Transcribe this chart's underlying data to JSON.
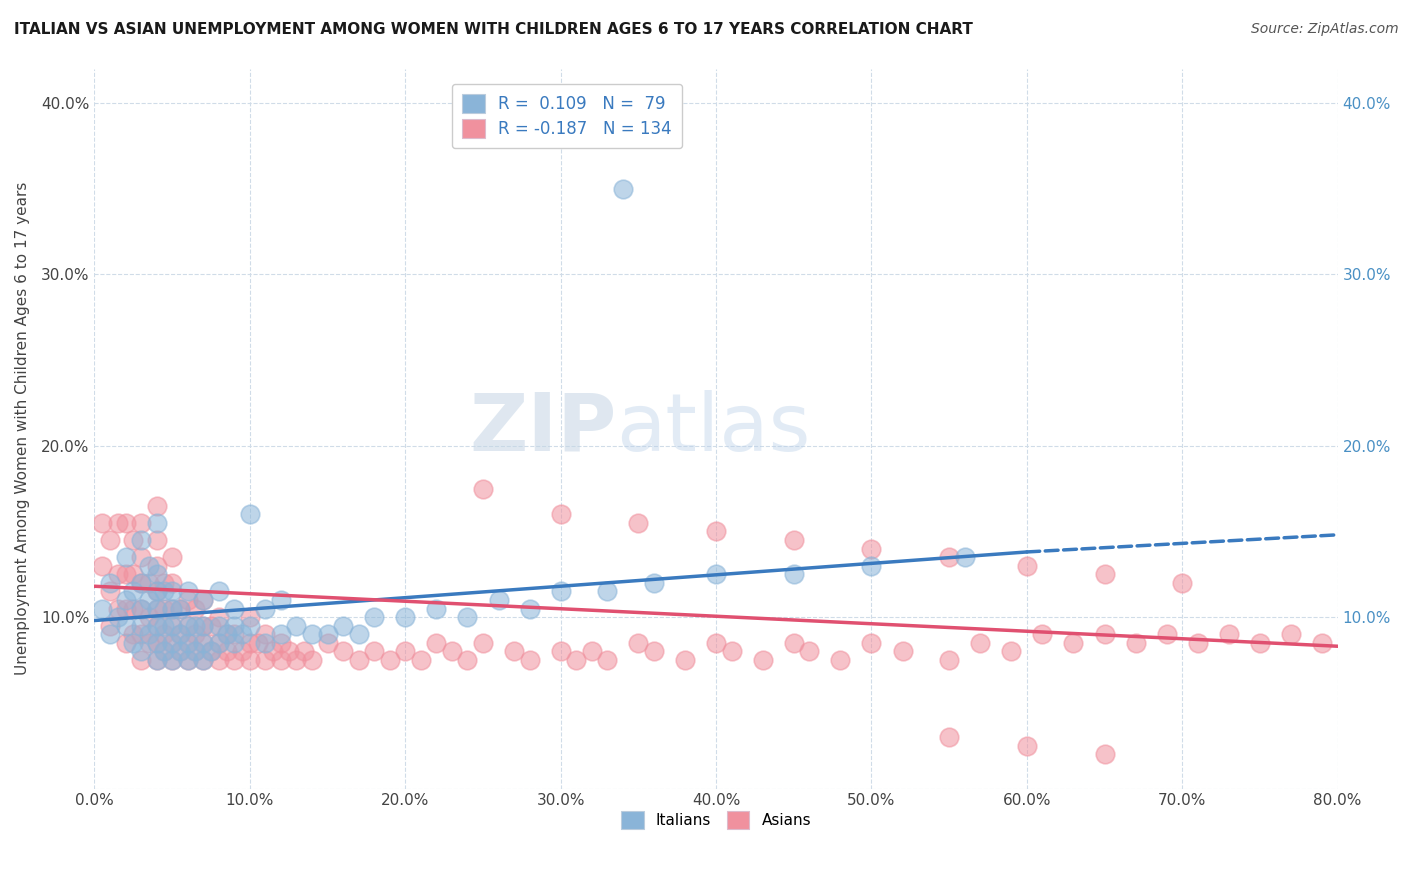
{
  "title": "ITALIAN VS ASIAN UNEMPLOYMENT AMONG WOMEN WITH CHILDREN AGES 6 TO 17 YEARS CORRELATION CHART",
  "source": "Source: ZipAtlas.com",
  "ylabel": "Unemployment Among Women with Children Ages 6 to 17 years",
  "xlim": [
    0.0,
    0.8
  ],
  "ylim": [
    0.0,
    0.42
  ],
  "xticks": [
    0.0,
    0.1,
    0.2,
    0.3,
    0.4,
    0.5,
    0.6,
    0.7,
    0.8
  ],
  "xticklabels": [
    "0.0%",
    "10.0%",
    "20.0%",
    "30.0%",
    "40.0%",
    "50.0%",
    "60.0%",
    "70.0%",
    "80.0%"
  ],
  "yticks_left": [
    0.0,
    0.1,
    0.2,
    0.3,
    0.4
  ],
  "yticklabels_left": [
    "",
    "10.0%",
    "20.0%",
    "30.0%",
    "40.0%"
  ],
  "yticks_right": [
    0.1,
    0.2,
    0.3,
    0.4
  ],
  "yticklabels_right": [
    "10.0%",
    "20.0%",
    "30.0%",
    "40.0%"
  ],
  "italian_color": "#8ab4d8",
  "asian_color": "#f0919e",
  "italian_line_color": "#3a7abf",
  "asian_line_color": "#e05070",
  "R_italian": 0.109,
  "N_italian": 79,
  "R_asian": -0.187,
  "N_asian": 134,
  "watermark_zip": "ZIP",
  "watermark_atlas": "atlas",
  "background_color": "#ffffff",
  "grid_color": "#d0dce8",
  "italian_scatter_x": [
    0.005,
    0.01,
    0.01,
    0.015,
    0.02,
    0.02,
    0.02,
    0.025,
    0.025,
    0.03,
    0.03,
    0.03,
    0.03,
    0.03,
    0.035,
    0.035,
    0.035,
    0.04,
    0.04,
    0.04,
    0.04,
    0.04,
    0.04,
    0.04,
    0.045,
    0.045,
    0.045,
    0.05,
    0.05,
    0.05,
    0.05,
    0.05,
    0.055,
    0.055,
    0.055,
    0.06,
    0.06,
    0.06,
    0.06,
    0.065,
    0.065,
    0.07,
    0.07,
    0.07,
    0.07,
    0.075,
    0.08,
    0.08,
    0.08,
    0.085,
    0.09,
    0.09,
    0.09,
    0.095,
    0.1,
    0.1,
    0.11,
    0.11,
    0.12,
    0.12,
    0.13,
    0.14,
    0.15,
    0.16,
    0.17,
    0.18,
    0.2,
    0.22,
    0.24,
    0.26,
    0.28,
    0.3,
    0.33,
    0.36,
    0.4,
    0.45,
    0.5,
    0.56,
    0.34
  ],
  "italian_scatter_y": [
    0.105,
    0.09,
    0.12,
    0.1,
    0.095,
    0.11,
    0.135,
    0.085,
    0.115,
    0.08,
    0.095,
    0.105,
    0.12,
    0.145,
    0.09,
    0.11,
    0.13,
    0.075,
    0.085,
    0.095,
    0.105,
    0.115,
    0.125,
    0.155,
    0.08,
    0.095,
    0.115,
    0.075,
    0.085,
    0.095,
    0.105,
    0.115,
    0.08,
    0.09,
    0.105,
    0.075,
    0.085,
    0.095,
    0.115,
    0.08,
    0.095,
    0.075,
    0.085,
    0.095,
    0.11,
    0.08,
    0.085,
    0.095,
    0.115,
    0.09,
    0.085,
    0.095,
    0.105,
    0.09,
    0.095,
    0.16,
    0.085,
    0.105,
    0.09,
    0.11,
    0.095,
    0.09,
    0.09,
    0.095,
    0.09,
    0.1,
    0.1,
    0.105,
    0.1,
    0.11,
    0.105,
    0.115,
    0.115,
    0.12,
    0.125,
    0.125,
    0.13,
    0.135,
    0.35
  ],
  "asian_scatter_x": [
    0.005,
    0.005,
    0.01,
    0.01,
    0.01,
    0.015,
    0.015,
    0.015,
    0.02,
    0.02,
    0.02,
    0.02,
    0.025,
    0.025,
    0.025,
    0.025,
    0.03,
    0.03,
    0.03,
    0.03,
    0.03,
    0.03,
    0.035,
    0.035,
    0.035,
    0.04,
    0.04,
    0.04,
    0.04,
    0.04,
    0.04,
    0.04,
    0.04,
    0.045,
    0.045,
    0.045,
    0.045,
    0.05,
    0.05,
    0.05,
    0.05,
    0.05,
    0.05,
    0.055,
    0.055,
    0.055,
    0.06,
    0.06,
    0.06,
    0.06,
    0.065,
    0.065,
    0.065,
    0.07,
    0.07,
    0.07,
    0.07,
    0.075,
    0.075,
    0.08,
    0.08,
    0.08,
    0.085,
    0.085,
    0.09,
    0.09,
    0.095,
    0.1,
    0.1,
    0.1,
    0.105,
    0.11,
    0.11,
    0.115,
    0.12,
    0.12,
    0.125,
    0.13,
    0.135,
    0.14,
    0.15,
    0.16,
    0.17,
    0.18,
    0.19,
    0.2,
    0.21,
    0.22,
    0.23,
    0.24,
    0.25,
    0.27,
    0.28,
    0.3,
    0.31,
    0.32,
    0.33,
    0.35,
    0.36,
    0.38,
    0.4,
    0.41,
    0.43,
    0.45,
    0.46,
    0.48,
    0.5,
    0.52,
    0.55,
    0.57,
    0.59,
    0.61,
    0.63,
    0.65,
    0.67,
    0.69,
    0.71,
    0.73,
    0.75,
    0.77,
    0.79,
    0.3,
    0.35,
    0.4,
    0.45,
    0.5,
    0.55,
    0.6,
    0.65,
    0.7,
    0.55,
    0.6,
    0.65,
    0.25
  ],
  "asian_scatter_y": [
    0.13,
    0.155,
    0.095,
    0.115,
    0.145,
    0.105,
    0.125,
    0.155,
    0.085,
    0.105,
    0.125,
    0.155,
    0.09,
    0.105,
    0.125,
    0.145,
    0.075,
    0.09,
    0.105,
    0.12,
    0.135,
    0.155,
    0.085,
    0.1,
    0.12,
    0.075,
    0.085,
    0.095,
    0.105,
    0.115,
    0.13,
    0.145,
    0.165,
    0.08,
    0.09,
    0.105,
    0.12,
    0.075,
    0.085,
    0.095,
    0.105,
    0.12,
    0.135,
    0.08,
    0.09,
    0.105,
    0.075,
    0.085,
    0.095,
    0.11,
    0.08,
    0.09,
    0.105,
    0.075,
    0.085,
    0.095,
    0.11,
    0.08,
    0.095,
    0.075,
    0.085,
    0.1,
    0.08,
    0.09,
    0.075,
    0.09,
    0.08,
    0.075,
    0.085,
    0.1,
    0.085,
    0.075,
    0.09,
    0.08,
    0.075,
    0.085,
    0.08,
    0.075,
    0.08,
    0.075,
    0.085,
    0.08,
    0.075,
    0.08,
    0.075,
    0.08,
    0.075,
    0.085,
    0.08,
    0.075,
    0.085,
    0.08,
    0.075,
    0.08,
    0.075,
    0.08,
    0.075,
    0.085,
    0.08,
    0.075,
    0.085,
    0.08,
    0.075,
    0.085,
    0.08,
    0.075,
    0.085,
    0.08,
    0.075,
    0.085,
    0.08,
    0.09,
    0.085,
    0.09,
    0.085,
    0.09,
    0.085,
    0.09,
    0.085,
    0.09,
    0.085,
    0.16,
    0.155,
    0.15,
    0.145,
    0.14,
    0.135,
    0.13,
    0.125,
    0.12,
    0.03,
    0.025,
    0.02,
    0.175
  ]
}
